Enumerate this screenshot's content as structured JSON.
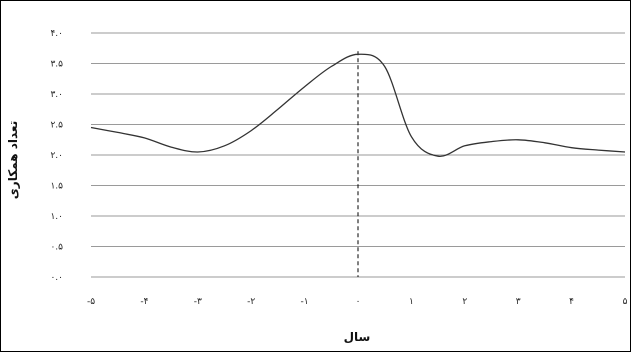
{
  "chart_data": {
    "type": "line",
    "title": "",
    "xlabel": "سال",
    "ylabel": "تعداد همکاری",
    "xlim": [
      -5,
      5
    ],
    "ylim": [
      0,
      4
    ],
    "x_tick_labels": [
      "-۵",
      "-۴",
      "-۳",
      "-۲",
      "-۱",
      "۰",
      "۱",
      "۲",
      "۳",
      "۴",
      "۵"
    ],
    "x_ticks": [
      -5,
      -4,
      -3,
      -2,
      -1,
      0,
      1,
      2,
      3,
      4,
      5
    ],
    "y_tick_labels": [
      "۰.۰",
      "۰.۵",
      "۱.۰",
      "۱.۵",
      "۲.۰",
      "۲.۵",
      "۳.۰",
      "۳.۵",
      "۴.۰"
    ],
    "y_ticks": [
      0,
      0.5,
      1,
      1.5,
      2,
      2.5,
      3,
      3.5,
      4
    ],
    "grid": true,
    "reference_line_x": 0,
    "series": [
      {
        "x": [
          -5,
          -4.5,
          -4,
          -3.5,
          -3,
          -2.5,
          -2,
          -1.5,
          -1,
          -0.5,
          0,
          0.5,
          1,
          1.5,
          2,
          2.5,
          3,
          3.5,
          4,
          4.5,
          5
        ],
        "values": [
          2.45,
          2.37,
          2.28,
          2.13,
          2.05,
          2.15,
          2.4,
          2.75,
          3.12,
          3.45,
          3.65,
          3.45,
          2.3,
          1.98,
          2.15,
          2.22,
          2.25,
          2.2,
          2.12,
          2.08,
          2.05
        ]
      }
    ],
    "colors": {
      "line": "#333333",
      "grid": "#9a9a9a",
      "reference_line": "#000000"
    }
  }
}
